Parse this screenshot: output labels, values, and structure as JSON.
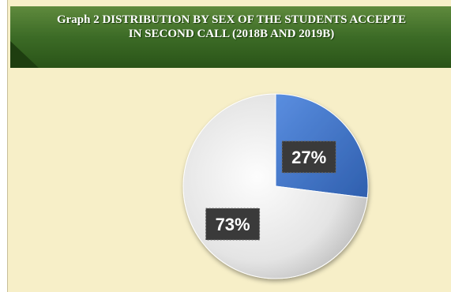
{
  "chart_data": {
    "type": "pie",
    "title": "Graph 2 DISTRIBUTION BY SEX OF THE STUDENTS ACCEPTE\nIN SECOND CALL (2018B AND 2019B)",
    "slices": [
      {
        "label": "27%",
        "value": 27,
        "color": "#3f73c6"
      },
      {
        "label": "73%",
        "value": 73,
        "color": "#e6e6e6"
      }
    ]
  }
}
